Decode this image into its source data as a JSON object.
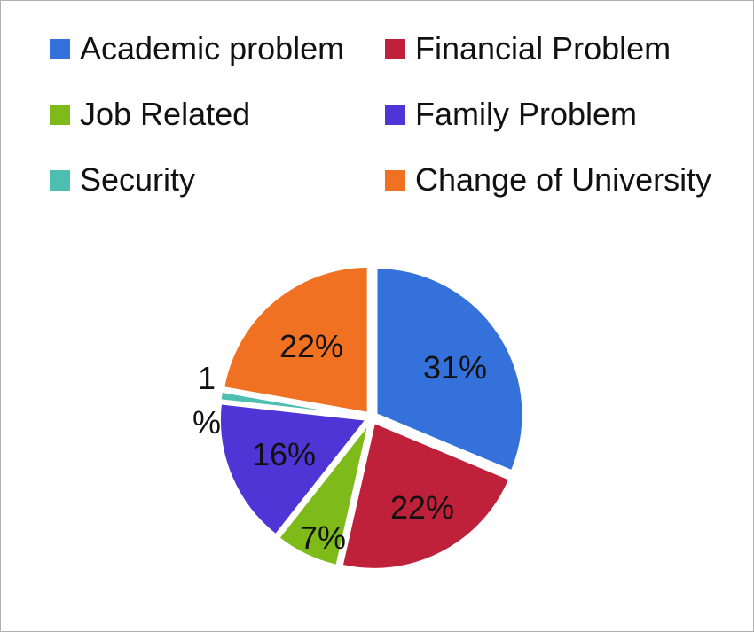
{
  "chart_data": {
    "type": "pie",
    "categories": [
      "Academic problem",
      "Financial Problem",
      "Job Related",
      "Family Problem",
      "Security",
      "Change of University"
    ],
    "values": [
      31,
      22,
      7,
      16,
      1,
      22
    ],
    "value_labels": [
      "31%",
      "22%",
      "7%",
      "16%",
      "1 %",
      "22%"
    ],
    "colors": [
      "#3471db",
      "#c0213a",
      "#7dba1a",
      "#4f35d6",
      "#4dbfb1",
      "#f07122"
    ],
    "legend_placement": "top",
    "title": "",
    "legend": [
      {
        "label": "Academic problem",
        "color": "#3471db"
      },
      {
        "label": "Financial Problem",
        "color": "#c0213a"
      },
      {
        "label": "Job Related",
        "color": "#7dba1a"
      },
      {
        "label": "Family Problem",
        "color": "#4f35d6"
      },
      {
        "label": "Security",
        "color": "#4dbfb1"
      },
      {
        "label": "Change of University",
        "color": "#f07122"
      }
    ]
  }
}
